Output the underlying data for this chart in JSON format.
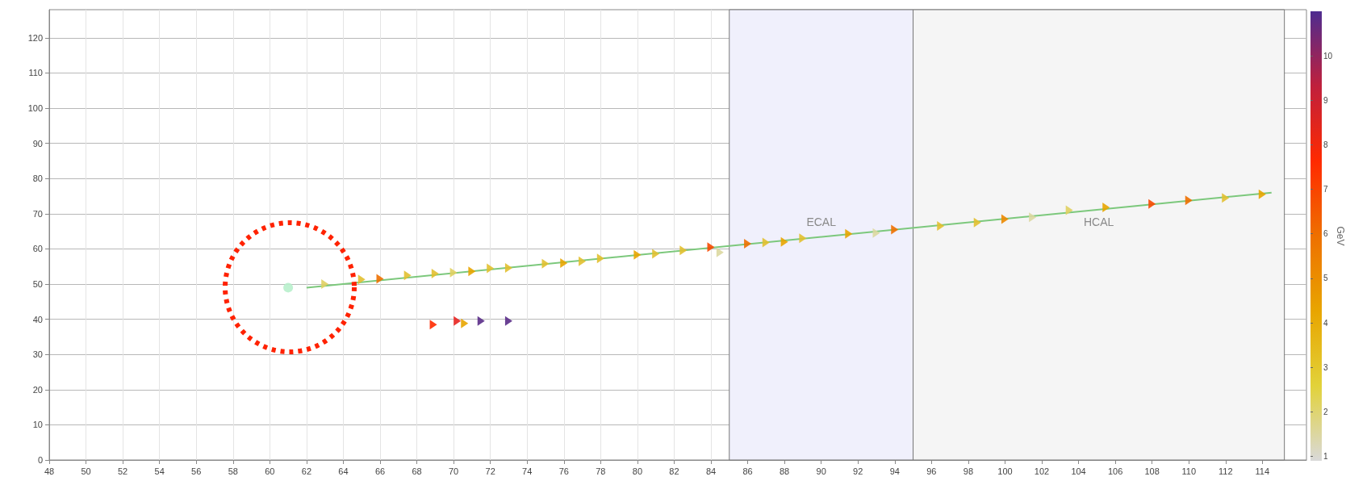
{
  "chart_data": {
    "type": "scatter",
    "clabel": "GeV",
    "clim": [
      0.9,
      11
    ],
    "cticks": [
      1,
      2,
      3,
      4,
      5,
      6,
      7,
      8,
      9,
      10
    ],
    "xlim": [
      48,
      116.4
    ],
    "ylim": [
      0,
      128
    ],
    "xticks": [
      48,
      50,
      52,
      54,
      56,
      58,
      60,
      62,
      64,
      66,
      68,
      70,
      72,
      74,
      76,
      78,
      80,
      82,
      84,
      86,
      88,
      90,
      92,
      94,
      96,
      98,
      100,
      102,
      104,
      106,
      108,
      110,
      112,
      114
    ],
    "yticks": [
      0,
      10,
      20,
      30,
      40,
      50,
      60,
      70,
      80,
      90,
      100,
      110,
      120
    ],
    "grid": true,
    "marker": "triangle",
    "bands": [
      {
        "axis": "x",
        "from": 85,
        "to": 95,
        "label": "ECAL",
        "color": "#f0f0fc"
      },
      {
        "axis": "x",
        "from": 95,
        "to": 115.2,
        "label": "HCAL",
        "color": "#f5f5f5"
      }
    ],
    "series": [
      {
        "type": "line",
        "color": "#7cc87c",
        "marker": "none",
        "x": [
          62,
          114.5
        ],
        "values": [
          49,
          76
        ]
      },
      {
        "type": "scatter",
        "color": "#b8f0cc",
        "marker": "circle",
        "x": [
          61
        ],
        "values": [
          49
        ]
      },
      {
        "x": [
          63,
          65,
          66,
          67.5,
          69,
          70,
          71,
          72,
          73,
          75,
          76,
          77,
          78,
          80,
          81,
          82.5,
          84,
          84.5,
          86,
          87,
          88,
          89,
          91.5,
          93,
          94,
          96.5,
          98.5,
          100,
          101.5,
          103.5,
          105.5,
          108,
          110,
          112,
          114,
          68.9,
          70.2,
          70.6,
          71.5,
          73
        ],
        "values": [
          50,
          51.3,
          51.5,
          52.5,
          53,
          53.3,
          53.6,
          54.5,
          54.6,
          55.8,
          56,
          56.5,
          57.3,
          58.3,
          58.6,
          59.6,
          60.5,
          59,
          61.5,
          61.8,
          62,
          63,
          64.3,
          64.5,
          65.5,
          66.5,
          67.5,
          68.5,
          69,
          71,
          71.8,
          72.8,
          73.8,
          74.5,
          75.5,
          38.5,
          39.5,
          38.8,
          39.5,
          39.5
        ],
        "colors": [
          "#e0d060",
          "#e2c030",
          "#ee7000",
          "#e2c030",
          "#e2c030",
          "#e0d060",
          "#e8a500",
          "#e2c030",
          "#e2c030",
          "#e2c030",
          "#e8a500",
          "#e2c030",
          "#e2c030",
          "#e8a500",
          "#e2c030",
          "#e2c030",
          "#f84a00",
          "#dcd8a0",
          "#ee7000",
          "#e2c030",
          "#e8a500",
          "#e2c030",
          "#e8a500",
          "#dcd8a0",
          "#ee7000",
          "#e2c030",
          "#e2c030",
          "#ec8a00",
          "#dcd8a0",
          "#e0d060",
          "#e8a500",
          "#f84a00",
          "#ee7000",
          "#e2c030",
          "#e8a500",
          "#ff2a00",
          "#e82420",
          "#e8a500",
          "#5a2c88",
          "#5a2c88"
        ]
      }
    ]
  }
}
